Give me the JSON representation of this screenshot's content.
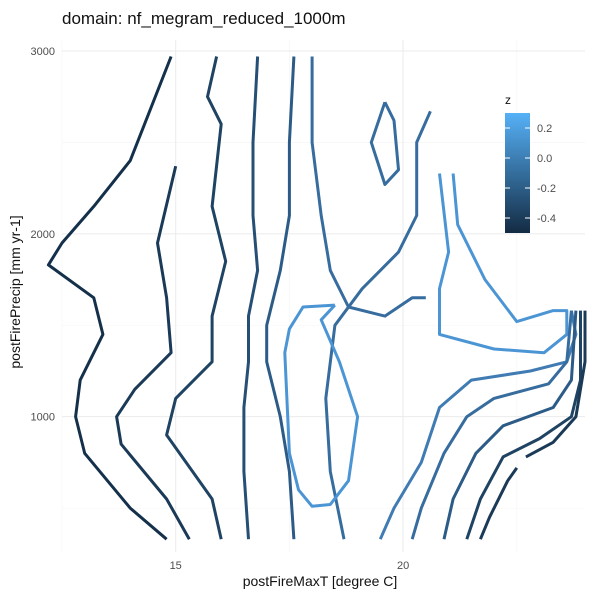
{
  "chart_data": {
    "type": "line",
    "subtype": "contour",
    "title": "domain: nf_megram_reduced_1000m",
    "xlabel": "postFireMaxT [degree C]",
    "ylabel": "postFirePrecip [mm yr-1]",
    "xlim": [
      12.5,
      24.0
    ],
    "ylim": [
      260,
      3060
    ],
    "x_ticks": [
      15,
      20
    ],
    "y_ticks": [
      1000,
      2000,
      3000
    ],
    "grid": true,
    "legend": {
      "title": "z",
      "position": "right",
      "range": [
        -0.5,
        0.3
      ],
      "ticks": [
        0.2,
        0.0,
        -0.2,
        -0.4
      ],
      "tick_labels": [
        "0.2",
        "0.0",
        "-0.2",
        "-0.4"
      ],
      "color_low": "#132B43",
      "color_high": "#56B1F7"
    },
    "series": [
      {
        "level": -0.5,
        "color": "#14304a",
        "points": [
          [
            14.8,
            330
          ],
          [
            14.0,
            500
          ],
          [
            13.0,
            800
          ],
          [
            12.8,
            1000
          ],
          [
            12.9,
            1200
          ],
          [
            13.4,
            1450
          ],
          [
            13.2,
            1650
          ],
          [
            12.2,
            1830
          ],
          [
            12.5,
            1950
          ],
          [
            13.2,
            2150
          ],
          [
            14.0,
            2400
          ],
          [
            14.9,
            2970
          ]
        ]
      },
      {
        "level": -0.4,
        "color": "#1a3a57",
        "points": [
          [
            15.3,
            330
          ],
          [
            14.8,
            550
          ],
          [
            13.8,
            850
          ],
          [
            13.7,
            1000
          ],
          [
            14.1,
            1150
          ],
          [
            14.9,
            1350
          ],
          [
            14.8,
            1650
          ],
          [
            14.6,
            1950
          ],
          [
            15.0,
            2370
          ]
        ]
      },
      {
        "level": -0.3,
        "color": "#1f4363",
        "points": [
          [
            16.0,
            330
          ],
          [
            15.8,
            550
          ],
          [
            14.8,
            900
          ],
          [
            15.0,
            1100
          ],
          [
            15.8,
            1300
          ],
          [
            15.8,
            1550
          ],
          [
            16.1,
            1850
          ],
          [
            15.8,
            2150
          ],
          [
            16.0,
            2600
          ],
          [
            15.7,
            2750
          ],
          [
            15.9,
            2970
          ]
        ]
      },
      {
        "level": -0.2,
        "color": "#264f75",
        "points": [
          [
            16.6,
            330
          ],
          [
            16.5,
            700
          ],
          [
            16.5,
            1050
          ],
          [
            16.6,
            1300
          ],
          [
            16.6,
            1550
          ],
          [
            16.8,
            1800
          ],
          [
            16.7,
            2100
          ],
          [
            16.7,
            2500
          ],
          [
            16.8,
            2970
          ]
        ]
      },
      {
        "level": -0.1,
        "color": "#2c5b87",
        "points": [
          [
            17.6,
            330
          ],
          [
            17.5,
            700
          ],
          [
            17.3,
            1000
          ],
          [
            17.0,
            1300
          ],
          [
            17.0,
            1500
          ],
          [
            17.3,
            1800
          ],
          [
            17.5,
            2100
          ],
          [
            17.5,
            2500
          ],
          [
            17.6,
            2970
          ]
        ]
      },
      {
        "level": 0.0,
        "color": "#376c9e",
        "points": [
          [
            18.7,
            330
          ],
          [
            18.4,
            700
          ],
          [
            18.3,
            1100
          ],
          [
            18.5,
            1500
          ],
          [
            19.1,
            1700
          ],
          [
            19.9,
            1900
          ],
          [
            20.3,
            2100
          ],
          [
            20.3,
            2500
          ],
          [
            20.6,
            2670
          ]
        ]
      },
      {
        "level": 0.0,
        "color": "#376c9e",
        "points": [
          [
            19.6,
            2720
          ],
          [
            19.3,
            2500
          ],
          [
            19.6,
            2270
          ],
          [
            19.9,
            2350
          ],
          [
            19.8,
            2620
          ],
          [
            19.6,
            2720
          ]
        ]
      },
      {
        "level": 0.0,
        "color": "#376c9e",
        "points": [
          [
            18.0,
            2970
          ],
          [
            18.0,
            2500
          ],
          [
            18.2,
            2100
          ],
          [
            18.4,
            1800
          ],
          [
            18.8,
            1600
          ],
          [
            19.6,
            1550
          ],
          [
            20.2,
            1650
          ],
          [
            20.5,
            1650
          ]
        ]
      },
      {
        "level": 0.1,
        "color": "#407cb3",
        "points": [
          [
            19.5,
            330
          ],
          [
            19.8,
            500
          ],
          [
            20.4,
            750
          ],
          [
            20.8,
            1050
          ],
          [
            21.5,
            1200
          ],
          [
            22.8,
            1250
          ],
          [
            23.6,
            1300
          ],
          [
            23.8,
            1450
          ],
          [
            23.7,
            1580
          ]
        ]
      },
      {
        "level": 0.2,
        "color": "#4c95d5",
        "points": [
          [
            18.5,
            1610
          ],
          [
            17.8,
            1600
          ],
          [
            17.5,
            1480
          ],
          [
            17.4,
            1350
          ],
          [
            17.5,
            800
          ],
          [
            17.7,
            600
          ],
          [
            18.0,
            510
          ],
          [
            18.4,
            520
          ],
          [
            18.8,
            650
          ],
          [
            19.0,
            1000
          ],
          [
            18.6,
            1300
          ],
          [
            18.2,
            1530
          ],
          [
            18.5,
            1610
          ]
        ]
      },
      {
        "level": 0.2,
        "color": "#4c95d5",
        "points": [
          [
            20.8,
            2330
          ],
          [
            21.0,
            1900
          ],
          [
            20.8,
            1700
          ],
          [
            20.8,
            1450
          ],
          [
            22.0,
            1370
          ],
          [
            23.1,
            1350
          ],
          [
            23.6,
            1450
          ],
          [
            23.6,
            1580
          ],
          [
            23.3,
            1580
          ],
          [
            22.5,
            1520
          ],
          [
            21.8,
            1750
          ],
          [
            21.2,
            2050
          ],
          [
            21.1,
            2330
          ]
        ]
      },
      {
        "level": 0.0,
        "color": "#376c9e",
        "points": [
          [
            20.2,
            330
          ],
          [
            20.4,
            500
          ],
          [
            20.9,
            800
          ],
          [
            21.4,
            1000
          ],
          [
            22.0,
            1100
          ],
          [
            23.2,
            1180
          ],
          [
            23.6,
            1300
          ],
          [
            23.7,
            1580
          ]
        ]
      },
      {
        "level": -0.1,
        "color": "#2c5b87",
        "points": [
          [
            20.9,
            330
          ],
          [
            21.1,
            550
          ],
          [
            21.6,
            800
          ],
          [
            22.2,
            950
          ],
          [
            23.3,
            1050
          ],
          [
            23.7,
            1200
          ],
          [
            23.8,
            1580
          ]
        ]
      },
      {
        "level": -0.3,
        "color": "#1f4363",
        "points": [
          [
            21.4,
            330
          ],
          [
            21.7,
            550
          ],
          [
            22.2,
            780
          ],
          [
            23.0,
            880
          ],
          [
            23.7,
            1000
          ],
          [
            23.9,
            1200
          ],
          [
            23.9,
            1580
          ]
        ]
      },
      {
        "level": -0.4,
        "color": "#1a3a57",
        "points": [
          [
            21.7,
            330
          ],
          [
            21.9,
            450
          ],
          [
            22.3,
            650
          ],
          [
            22.5,
            720
          ]
        ]
      },
      {
        "level": -0.4,
        "color": "#1a3a57",
        "points": [
          [
            22.7,
            780
          ],
          [
            23.3,
            860
          ],
          [
            23.8,
            1000
          ],
          [
            24.0,
            1300
          ],
          [
            24.0,
            1580
          ]
        ]
      }
    ]
  }
}
